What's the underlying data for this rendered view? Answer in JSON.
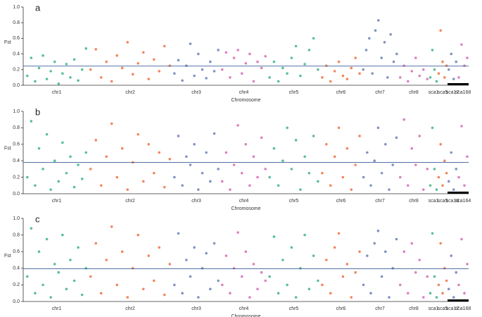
{
  "chart_data": [
    {
      "type": "manhattan",
      "panel_label": "a",
      "ylabel": "Fst",
      "xlabel": "Chromosome",
      "ylim": [
        0,
        1
      ],
      "yticks": [
        {
          "value": 0,
          "label": "0.0"
        },
        {
          "value": 0.2,
          "label": "0.2"
        },
        {
          "value": 0.4,
          "label": "0.4"
        },
        {
          "value": 0.6,
          "label": "0.6"
        },
        {
          "value": 0.8,
          "label": "0.8"
        },
        {
          "value": 1,
          "label": "1.0"
        }
      ],
      "threshold": 0.245,
      "threshold_color": "#3a5f94",
      "groups": [
        {
          "label": "chr1",
          "color": "#5bbf98",
          "values": [
            0.12,
            0.35,
            0.05,
            0.22,
            0.38,
            0.08,
            0.18,
            0.3,
            0.02,
            0.15,
            0.27,
            0.1,
            0.33,
            0.06,
            0.2,
            0.47
          ]
        },
        {
          "label": "chr2",
          "color": "#f2875f",
          "values": [
            0.2,
            0.46,
            0.1,
            0.3,
            0.05,
            0.38,
            0.22,
            0.55,
            0.14,
            0.28,
            0.42,
            0.08,
            0.33,
            0.18,
            0.5,
            0.25
          ]
        },
        {
          "label": "chr3",
          "color": "#8292c6",
          "values": [
            0.15,
            0.32,
            0.06,
            0.25,
            0.53,
            0.12,
            0.4,
            0.2,
            0.09,
            0.3,
            0.18,
            0.45
          ]
        },
        {
          "label": "chr4",
          "color": "#db82c0",
          "values": [
            0.2,
            0.42,
            0.1,
            0.35,
            0.45,
            0.15,
            0.28,
            0.4,
            0.05,
            0.3,
            0.22,
            0.37
          ]
        },
        {
          "label": "chr5",
          "color": "#5bbf98",
          "values": [
            0.1,
            0.3,
            0.05,
            0.22,
            0.15,
            0.35,
            0.5,
            0.12,
            0.27,
            0.45,
            0.6,
            0.2
          ]
        },
        {
          "label": "chr6",
          "color": "#f2875f",
          "values": [
            0.1,
            0.25,
            0.05,
            0.18,
            0.3,
            0.12,
            0.08,
            0.22,
            0.35,
            0.15
          ]
        },
        {
          "label": "chr7",
          "color": "#8292c6",
          "values": [
            0.2,
            0.45,
            0.6,
            0.15,
            0.7,
            0.83,
            0.35,
            0.55,
            0.1,
            0.65,
            0.3,
            0.4
          ]
        },
        {
          "label": "chr8",
          "color": "#db82c0",
          "values": [
            0.1,
            0.25,
            0.05,
            0.18,
            0.35,
            0.12,
            0.2,
            0.08
          ]
        },
        {
          "label": "sca1",
          "color": "#5bbf98",
          "values": [
            0.1,
            0.45,
            0.2,
            0.05
          ]
        },
        {
          "label": "sca5",
          "color": "#f2875f",
          "values": [
            0.15,
            0.7,
            0.3,
            0.1,
            0.25
          ]
        },
        {
          "label": "sca17",
          "color": "#8292c6",
          "values": [
            0.2,
            0.4,
            0.08,
            0.3
          ]
        },
        {
          "label": "sca168",
          "color": "#db82c0",
          "values": [
            0.1,
            0.52,
            0.25,
            0.35
          ]
        }
      ]
    },
    {
      "type": "manhattan",
      "panel_label": "b",
      "ylabel": "Fst",
      "xlabel": "Chromosome",
      "ylim": [
        0,
        1
      ],
      "yticks": [
        {
          "value": 0,
          "label": "0.0"
        },
        {
          "value": 0.2,
          "label": "0.2"
        },
        {
          "value": 0.4,
          "label": "0.4"
        },
        {
          "value": 0.6,
          "label": "0.6"
        },
        {
          "value": 0.8,
          "label": "0.8"
        },
        {
          "value": 1,
          "label": "1.0"
        }
      ],
      "threshold": 0.38,
      "threshold_color": "#3a5f94",
      "groups": [
        {
          "label": "chr1",
          "color": "#5bbf98",
          "values": [
            0.2,
            0.88,
            0.1,
            0.55,
            0.3,
            0.72,
            0.05,
            0.4,
            0.15,
            0.62,
            0.25,
            0.45,
            0.08,
            0.35,
            0.18,
            0.5
          ]
        },
        {
          "label": "chr2",
          "color": "#f2875f",
          "values": [
            0.3,
            0.65,
            0.1,
            0.45,
            0.85,
            0.2,
            0.55,
            0.05,
            0.38,
            0.72,
            0.15,
            0.6,
            0.25,
            0.5,
            0.08,
            0.42
          ]
        },
        {
          "label": "chr3",
          "color": "#8292c6",
          "values": [
            0.2,
            0.7,
            0.1,
            0.45,
            0.35,
            0.6,
            0.05,
            0.25,
            0.5,
            0.15,
            0.73,
            0.3
          ]
        },
        {
          "label": "chr4",
          "color": "#db82c0",
          "values": [
            0.15,
            0.5,
            0.05,
            0.35,
            0.83,
            0.25,
            0.6,
            0.1,
            0.45,
            0.2,
            0.68,
            0.3
          ]
        },
        {
          "label": "chr5",
          "color": "#5bbf98",
          "values": [
            0.2,
            0.55,
            0.1,
            0.4,
            0.8,
            0.3,
            0.65,
            0.05,
            0.45,
            0.25,
            0.7,
            0.15
          ]
        },
        {
          "label": "chr6",
          "color": "#f2875f",
          "values": [
            0.25,
            0.6,
            0.1,
            0.45,
            0.8,
            0.2,
            0.55,
            0.05,
            0.35,
            0.7
          ]
        },
        {
          "label": "chr7",
          "color": "#8292c6",
          "values": [
            0.2,
            0.5,
            0.1,
            0.4,
            0.8,
            0.25,
            0.6,
            0.05,
            0.35,
            0.68
          ]
        },
        {
          "label": "chr8",
          "color": "#db82c0",
          "values": [
            0.2,
            0.9,
            0.1,
            0.55,
            0.35,
            0.7,
            0.05,
            0.3
          ]
        },
        {
          "label": "sca1",
          "color": "#5bbf98",
          "values": [
            0.1,
            0.8,
            0.3,
            0.05
          ]
        },
        {
          "label": "sca5",
          "color": "#f2875f",
          "values": [
            0.2,
            0.6,
            0.1,
            0.4,
            0.25
          ]
        },
        {
          "label": "sca16",
          "color": "#8292c6",
          "values": [
            0.15,
            0.5,
            0.05,
            0.3
          ]
        },
        {
          "label": "sca164",
          "color": "#db82c0",
          "values": [
            0.2,
            0.82,
            0.1,
            0.45
          ]
        }
      ]
    },
    {
      "type": "manhattan",
      "panel_label": "c",
      "ylabel": "Fst",
      "xlabel": "Chromosome",
      "ylim": [
        0,
        1
      ],
      "yticks": [
        {
          "value": 0,
          "label": "0.0"
        },
        {
          "value": 0.2,
          "label": "0.2"
        },
        {
          "value": 0.4,
          "label": "0.4"
        },
        {
          "value": 0.6,
          "label": "0.6"
        },
        {
          "value": 0.8,
          "label": "0.8"
        },
        {
          "value": 1,
          "label": "1.0"
        }
      ],
      "threshold": 0.395,
      "threshold_color": "#3a5f94",
      "groups": [
        {
          "label": "chr1",
          "color": "#5bbf98",
          "values": [
            0.3,
            0.88,
            0.1,
            0.6,
            0.2,
            0.75,
            0.05,
            0.45,
            0.35,
            0.8,
            0.15,
            0.5,
            0.25,
            0.65,
            0.08,
            0.4
          ]
        },
        {
          "label": "chr2",
          "color": "#f2875f",
          "values": [
            0.3,
            0.7,
            0.1,
            0.5,
            0.9,
            0.2,
            0.6,
            0.05,
            0.4,
            0.8,
            0.15,
            0.55,
            0.25,
            0.65,
            0.08,
            0.45
          ]
        },
        {
          "label": "chr3",
          "color": "#8292c6",
          "values": [
            0.2,
            0.82,
            0.1,
            0.5,
            0.3,
            0.65,
            0.05,
            0.4,
            0.58,
            0.15,
            0.7,
            0.25
          ]
        },
        {
          "label": "chr4",
          "color": "#db82c0",
          "values": [
            0.2,
            0.55,
            0.1,
            0.4,
            0.83,
            0.3,
            0.6,
            0.05,
            0.45,
            0.15,
            0.35,
            0.25
          ]
        },
        {
          "label": "chr5",
          "color": "#5bbf98",
          "values": [
            0.3,
            0.78,
            0.1,
            0.5,
            0.2,
            0.65,
            0.05,
            0.4,
            0.8,
            0.15,
            0.55,
            0.25
          ]
        },
        {
          "label": "chr6",
          "color": "#f2875f",
          "values": [
            0.2,
            0.5,
            0.1,
            0.65,
            0.82,
            0.3,
            0.45,
            0.05,
            0.35,
            0.6
          ]
        },
        {
          "label": "chr7",
          "color": "#8292c6",
          "values": [
            0.2,
            0.55,
            0.1,
            0.7,
            0.85,
            0.3,
            0.6,
            0.05,
            0.4,
            0.75
          ]
        },
        {
          "label": "chr8",
          "color": "#db82c0",
          "values": [
            0.2,
            0.6,
            0.1,
            0.7,
            0.35,
            0.5,
            0.05,
            0.3
          ]
        },
        {
          "label": "sca1",
          "color": "#5bbf98",
          "values": [
            0.1,
            0.82,
            0.3,
            0.05
          ]
        },
        {
          "label": "sca5",
          "color": "#f2875f",
          "values": [
            0.2,
            0.7,
            0.1,
            0.4,
            0.25
          ]
        },
        {
          "label": "sca17",
          "color": "#8292c6",
          "values": [
            0.15,
            0.55,
            0.05,
            0.35
          ]
        },
        {
          "label": "sca168",
          "color": "#db82c0",
          "values": [
            0.2,
            0.75,
            0.1,
            0.45
          ]
        }
      ]
    }
  ]
}
